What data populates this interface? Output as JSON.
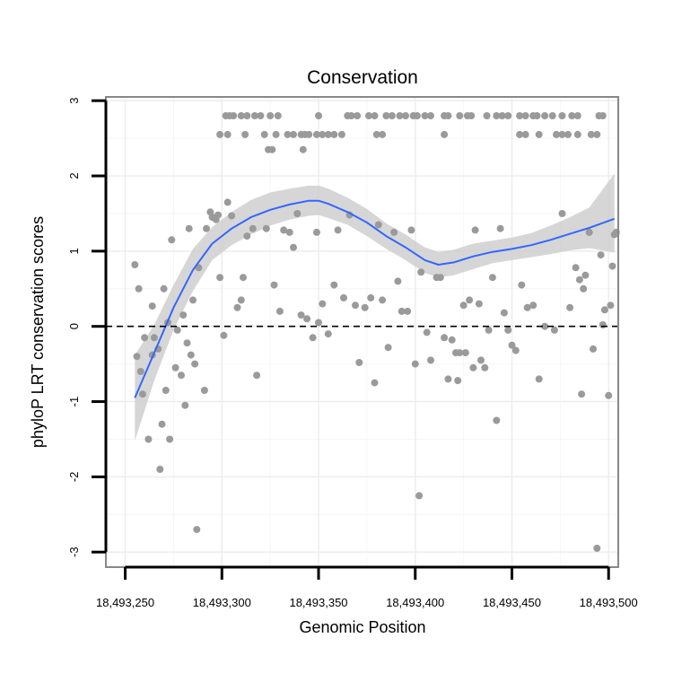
{
  "chart_data": {
    "type": "scatter",
    "title": "Conservation",
    "xlabel": "Genomic Position",
    "ylabel": "phyloP LRT conservation scores",
    "xlim": [
      18493240,
      18493505
    ],
    "ylim": [
      -3.2,
      3.05
    ],
    "x_ticks": [
      18493250,
      18493300,
      18493350,
      18493400,
      18493450,
      18493500
    ],
    "x_tick_labels": [
      "18,493,250",
      "18,493,300",
      "18,493,350",
      "18,493,400",
      "18,493,450",
      "18,493,500"
    ],
    "y_ticks": [
      -3,
      -2,
      -1,
      0,
      1,
      2,
      3
    ],
    "y_tick_labels": [
      "-3",
      "-2",
      "-1",
      "0",
      "1",
      "2",
      "3"
    ],
    "reference_line": {
      "y": 0,
      "style": "dashed"
    },
    "grid": true,
    "colors": {
      "points": "#9a9a9a",
      "smooth": "#3366ff",
      "band": "#cccccc",
      "panel_border": "#888888"
    },
    "points": [
      [
        18493302,
        2.8
      ],
      [
        18493304,
        2.8
      ],
      [
        18493306,
        2.8
      ],
      [
        18493310,
        2.8
      ],
      [
        18493313,
        2.8
      ],
      [
        18493317,
        2.8
      ],
      [
        18493320,
        2.8
      ],
      [
        18493325,
        2.8
      ],
      [
        18493329,
        2.8
      ],
      [
        18493350,
        2.8
      ],
      [
        18493365,
        2.8
      ],
      [
        18493367,
        2.8
      ],
      [
        18493370,
        2.8
      ],
      [
        18493376,
        2.8
      ],
      [
        18493379,
        2.8
      ],
      [
        18493385,
        2.8
      ],
      [
        18493388,
        2.8
      ],
      [
        18493392,
        2.8
      ],
      [
        18493395,
        2.8
      ],
      [
        18493399,
        2.8
      ],
      [
        18493401,
        2.8
      ],
      [
        18493405,
        2.8
      ],
      [
        18493408,
        2.8
      ],
      [
        18493415,
        2.8
      ],
      [
        18493417,
        2.8
      ],
      [
        18493423,
        2.8
      ],
      [
        18493427,
        2.8
      ],
      [
        18493429,
        2.8
      ],
      [
        18493437,
        2.8
      ],
      [
        18493442,
        2.8
      ],
      [
        18493445,
        2.8
      ],
      [
        18493448,
        2.8
      ],
      [
        18493454,
        2.8
      ],
      [
        18493457,
        2.8
      ],
      [
        18493461,
        2.8
      ],
      [
        18493463,
        2.8
      ],
      [
        18493467,
        2.8
      ],
      [
        18493471,
        2.8
      ],
      [
        18493476,
        2.8
      ],
      [
        18493481,
        2.8
      ],
      [
        18493484,
        2.8
      ],
      [
        18493495,
        2.8
      ],
      [
        18493497,
        2.8
      ],
      [
        18493299,
        2.55
      ],
      [
        18493303,
        2.55
      ],
      [
        18493312,
        2.55
      ],
      [
        18493322,
        2.55
      ],
      [
        18493328,
        2.55
      ],
      [
        18493334,
        2.55
      ],
      [
        18493337,
        2.55
      ],
      [
        18493341,
        2.55
      ],
      [
        18493343,
        2.55
      ],
      [
        18493345,
        2.55
      ],
      [
        18493349,
        2.55
      ],
      [
        18493352,
        2.55
      ],
      [
        18493355,
        2.55
      ],
      [
        18493358,
        2.55
      ],
      [
        18493362,
        2.55
      ],
      [
        18493380,
        2.55
      ],
      [
        18493383,
        2.55
      ],
      [
        18493415,
        2.55
      ],
      [
        18493454,
        2.55
      ],
      [
        18493457,
        2.55
      ],
      [
        18493464,
        2.55
      ],
      [
        18493473,
        2.55
      ],
      [
        18493476,
        2.55
      ],
      [
        18493479,
        2.55
      ],
      [
        18493484,
        2.55
      ],
      [
        18493491,
        2.55
      ],
      [
        18493494,
        2.55
      ],
      [
        18493324,
        2.35
      ],
      [
        18493326,
        2.35
      ],
      [
        18493342,
        2.35
      ],
      [
        18493255,
        0.82
      ],
      [
        18493257,
        0.5
      ],
      [
        18493256,
        -0.4
      ],
      [
        18493258,
        -0.6
      ],
      [
        18493259,
        -0.9
      ],
      [
        18493260,
        -0.15
      ],
      [
        18493262,
        -1.5
      ],
      [
        18493264,
        0.27
      ],
      [
        18493264,
        -0.38
      ],
      [
        18493265,
        -0.15
      ],
      [
        18493267,
        -0.3
      ],
      [
        18493268,
        -1.9
      ],
      [
        18493269,
        -1.3
      ],
      [
        18493270,
        0.5
      ],
      [
        18493271,
        -0.85
      ],
      [
        18493272,
        0.05
      ],
      [
        18493273,
        -1.5
      ],
      [
        18493274,
        1.15
      ],
      [
        18493276,
        -0.55
      ],
      [
        18493277,
        -0.05
      ],
      [
        18493279,
        -0.65
      ],
      [
        18493280,
        0.15
      ],
      [
        18493281,
        -1.05
      ],
      [
        18493282,
        -0.22
      ],
      [
        18493283,
        1.3
      ],
      [
        18493284,
        -0.38
      ],
      [
        18493285,
        0.35
      ],
      [
        18493286,
        -0.5
      ],
      [
        18493287,
        -2.7
      ],
      [
        18493288,
        0.78
      ],
      [
        18493291,
        -0.85
      ],
      [
        18493292,
        1.3
      ],
      [
        18493294,
        1.52
      ],
      [
        18493295,
        1.45
      ],
      [
        18493297,
        1.42
      ],
      [
        18493298,
        1.48
      ],
      [
        18493299,
        0.65
      ],
      [
        18493301,
        -0.12
      ],
      [
        18493303,
        1.65
      ],
      [
        18493305,
        1.47
      ],
      [
        18493308,
        0.25
      ],
      [
        18493310,
        0.35
      ],
      [
        18493311,
        0.65
      ],
      [
        18493313,
        1.2
      ],
      [
        18493316,
        1.3
      ],
      [
        18493318,
        -0.65
      ],
      [
        18493323,
        1.3
      ],
      [
        18493327,
        0.55
      ],
      [
        18493330,
        0.2
      ],
      [
        18493332,
        1.28
      ],
      [
        18493335,
        1.25
      ],
      [
        18493337,
        1.05
      ],
      [
        18493339,
        1.5
      ],
      [
        18493341,
        0.15
      ],
      [
        18493344,
        0.1
      ],
      [
        18493347,
        -0.15
      ],
      [
        18493349,
        1.25
      ],
      [
        18493350,
        0.05
      ],
      [
        18493352,
        0.3
      ],
      [
        18493355,
        -0.1
      ],
      [
        18493358,
        0.55
      ],
      [
        18493360,
        1.28
      ],
      [
        18493363,
        0.38
      ],
      [
        18493366,
        1.48
      ],
      [
        18493369,
        0.28
      ],
      [
        18493371,
        -0.48
      ],
      [
        18493374,
        0.25
      ],
      [
        18493377,
        0.38
      ],
      [
        18493379,
        -0.75
      ],
      [
        18493381,
        1.35
      ],
      [
        18493383,
        0.35
      ],
      [
        18493386,
        -0.28
      ],
      [
        18493389,
        1.25
      ],
      [
        18493391,
        0.6
      ],
      [
        18493393,
        0.2
      ],
      [
        18493396,
        0.2
      ],
      [
        18493398,
        1.28
      ],
      [
        18493400,
        -0.5
      ],
      [
        18493402,
        -2.25
      ],
      [
        18493403,
        0.72
      ],
      [
        18493406,
        -0.08
      ],
      [
        18493408,
        -0.45
      ],
      [
        18493411,
        0.65
      ],
      [
        18493413,
        0.65
      ],
      [
        18493415,
        -0.15
      ],
      [
        18493417,
        -0.7
      ],
      [
        18493419,
        -0.18
      ],
      [
        18493421,
        -0.35
      ],
      [
        18493422,
        -0.72
      ],
      [
        18493423,
        -0.35
      ],
      [
        18493425,
        0.28
      ],
      [
        18493426,
        -0.35
      ],
      [
        18493428,
        0.35
      ],
      [
        18493430,
        -0.55
      ],
      [
        18493431,
        1.28
      ],
      [
        18493433,
        0.3
      ],
      [
        18493434,
        -0.45
      ],
      [
        18493436,
        -0.55
      ],
      [
        18493438,
        -0.05
      ],
      [
        18493440,
        0.65
      ],
      [
        18493442,
        -1.25
      ],
      [
        18493444,
        1.3
      ],
      [
        18493446,
        0.18
      ],
      [
        18493448,
        -0.05
      ],
      [
        18493450,
        -0.25
      ],
      [
        18493452,
        -0.32
      ],
      [
        18493455,
        0.55
      ],
      [
        18493458,
        0.25
      ],
      [
        18493461,
        0.28
      ],
      [
        18493464,
        -0.7
      ],
      [
        18493467,
        0.0
      ],
      [
        18493472,
        -0.05
      ],
      [
        18493476,
        1.5
      ],
      [
        18493480,
        0.25
      ],
      [
        18493483,
        0.78
      ],
      [
        18493485,
        0.62
      ],
      [
        18493486,
        -0.9
      ],
      [
        18493487,
        0.5
      ],
      [
        18493488,
        0.68
      ],
      [
        18493490,
        1.25
      ],
      [
        18493492,
        -0.3
      ],
      [
        18493494,
        -2.95
      ],
      [
        18493496,
        0.95
      ],
      [
        18493497,
        0.02
      ],
      [
        18493498,
        0.22
      ],
      [
        18493500,
        -0.92
      ],
      [
        18493501,
        0.28
      ],
      [
        18493502,
        0.8
      ],
      [
        18493503,
        1.22
      ],
      [
        18493504,
        1.25
      ]
    ],
    "smooth_line": {
      "x": [
        18493255,
        18493265,
        18493275,
        18493285,
        18493295,
        18493305,
        18493315,
        18493325,
        18493335,
        18493345,
        18493350,
        18493355,
        18493365,
        18493375,
        18493385,
        18493395,
        18493405,
        18493412,
        18493420,
        18493430,
        18493440,
        18493450,
        18493460,
        18493470,
        18493480,
        18493490,
        18493503
      ],
      "y": [
        -0.95,
        -0.35,
        0.25,
        0.75,
        1.1,
        1.3,
        1.45,
        1.55,
        1.62,
        1.67,
        1.67,
        1.63,
        1.52,
        1.38,
        1.2,
        1.05,
        0.88,
        0.82,
        0.85,
        0.93,
        0.99,
        1.03,
        1.08,
        1.15,
        1.23,
        1.31,
        1.43
      ],
      "lower": [
        -1.52,
        -0.72,
        -0.05,
        0.47,
        0.88,
        1.08,
        1.22,
        1.34,
        1.42,
        1.47,
        1.48,
        1.44,
        1.35,
        1.2,
        1.03,
        0.88,
        0.71,
        0.65,
        0.68,
        0.76,
        0.84,
        0.88,
        0.92,
        0.96,
        1.01,
        1.04,
        0.98
      ],
      "upper": [
        -0.38,
        0.02,
        0.55,
        1.03,
        1.32,
        1.52,
        1.68,
        1.78,
        1.83,
        1.87,
        1.87,
        1.83,
        1.71,
        1.56,
        1.37,
        1.22,
        1.05,
        0.99,
        1.02,
        1.1,
        1.14,
        1.18,
        1.24,
        1.34,
        1.45,
        1.58,
        2.03
      ]
    }
  }
}
